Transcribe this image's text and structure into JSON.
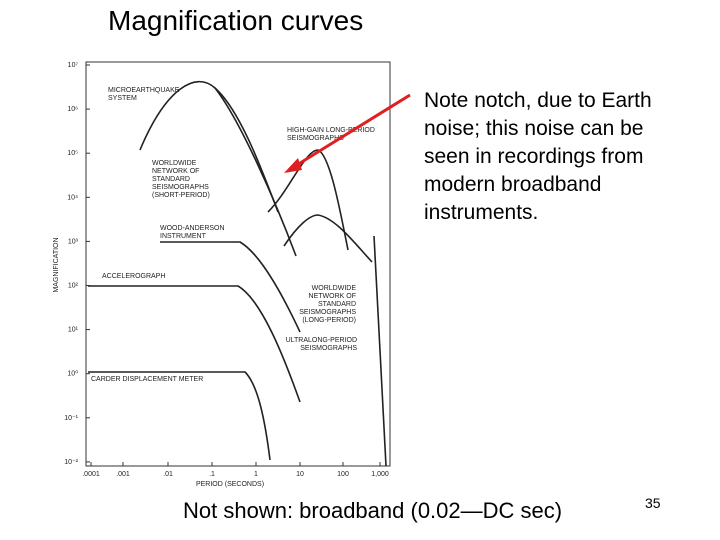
{
  "slide": {
    "title": "Magnification curves",
    "note_lines": [
      "Note notch, due to Earth",
      "noise; this noise can be",
      "seen in recordings from",
      "modern broadband",
      "instruments."
    ],
    "footer": "Not shown: broadband (0.02—DC sec)",
    "page_number": "35",
    "figure": {
      "y_axis_label": "MAGNIFICATION",
      "x_axis_label": "PERIOD (SECONDS)",
      "y_tick_labels": [
        "10⁷",
        "10⁶",
        "10⁵",
        "10⁴",
        "10³",
        "10²",
        "10¹",
        "10⁰",
        "10⁻¹",
        "10⁻²"
      ],
      "x_tick_labels": [
        ".0001",
        ".001",
        ".01",
        ".1",
        "1",
        "10",
        "100",
        "1,000"
      ],
      "curve_labels": [
        [
          "MICROEARTHQUAKE",
          "SYSTEM"
        ],
        [
          "HIGH-GAIN LONG-PERIOD",
          "SEISMOGRAPHS"
        ],
        [
          "WORLDWIDE",
          "NETWORK OF",
          "STANDARD",
          "SEISMOGRAPHS",
          "(SHORT-PERIOD)"
        ],
        [
          "WOOD-ANDERSON",
          "INSTRUMENT"
        ],
        [
          "ACCELEROGRAPH"
        ],
        [
          "WORLDWIDE",
          "NETWORK OF",
          "STANDARD",
          "SEISMOGRAPHS",
          "(LONG-PERIOD)"
        ],
        [
          "ULTRALONG-PERIOD",
          "SEISMOGRAPHS"
        ],
        [
          "CARDER DISPLACEMENT METER"
        ]
      ]
    }
  }
}
